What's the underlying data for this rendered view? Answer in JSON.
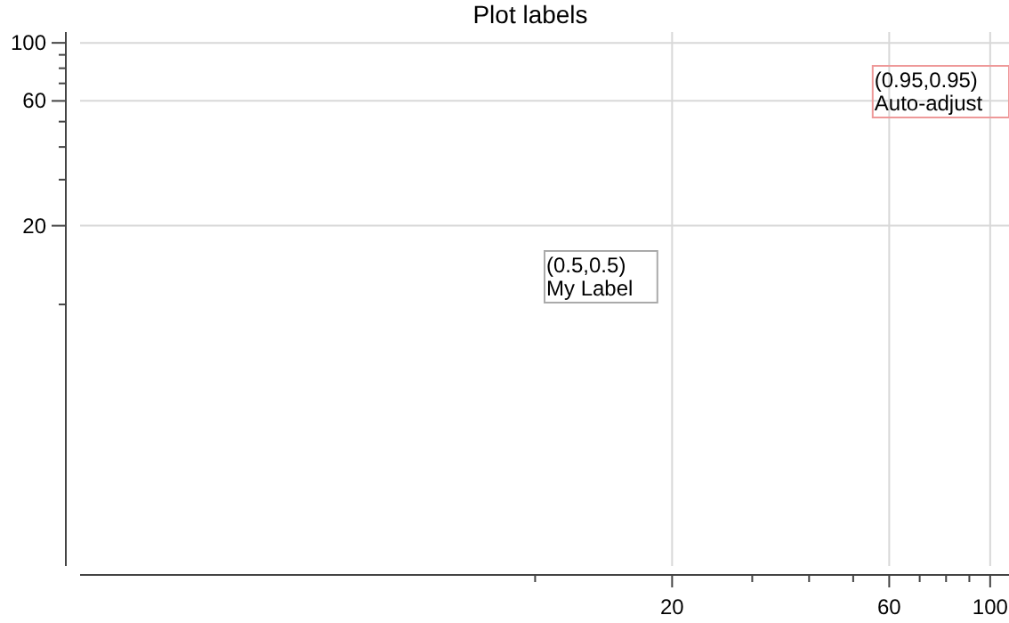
{
  "chart_data": {
    "type": "line",
    "title": "Plot labels",
    "log": "xy",
    "grid": true,
    "xlim": [
      1,
      110
    ],
    "ylim": [
      1,
      110
    ],
    "xticks": [
      {
        "value": 10,
        "label": null
      },
      20,
      {
        "value": 30,
        "label": null
      },
      {
        "value": 40,
        "label": null
      },
      {
        "value": 50,
        "label": null
      },
      60,
      {
        "value": 70,
        "label": null
      },
      {
        "value": 80,
        "label": null
      },
      {
        "value": 90,
        "label": null
      },
      100
    ],
    "yticks": [
      {
        "value": 10,
        "label": null
      },
      20,
      {
        "value": 30,
        "label": null
      },
      {
        "value": 40,
        "label": null
      },
      {
        "value": 50,
        "label": null
      },
      60,
      {
        "value": 70,
        "label": null
      },
      {
        "value": 80,
        "label": null
      },
      {
        "value": 90,
        "label": null
      },
      100
    ],
    "annotations": [
      "(0.5,0.5)\nMy Label",
      "(0.95,0.95)\nAuto-adjust"
    ]
  }
}
